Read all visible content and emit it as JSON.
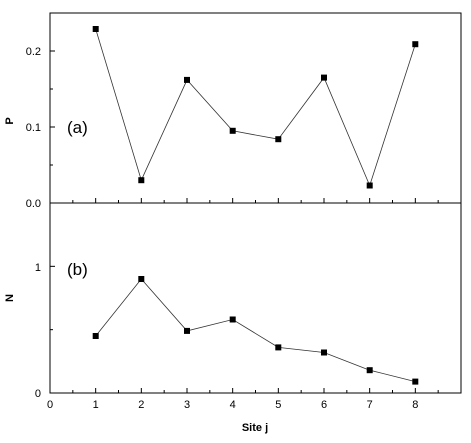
{
  "chart_data": [
    {
      "type": "line",
      "panel_label": "(a)",
      "ylabel": "P",
      "xlabel": "",
      "x": [
        1,
        2,
        3,
        4,
        5,
        6,
        7,
        8
      ],
      "y": [
        0.229,
        0.03,
        0.162,
        0.095,
        0.084,
        0.165,
        0.023,
        0.209
      ],
      "xlim": [
        0,
        9
      ],
      "ylim": [
        0.0,
        0.25
      ],
      "xticks": [
        0,
        1,
        2,
        3,
        4,
        5,
        6,
        7,
        8
      ],
      "yticks": [
        "0.0",
        "0.1",
        "0.2"
      ],
      "marker": "square",
      "grid": false
    },
    {
      "type": "line",
      "panel_label": "(b)",
      "ylabel": "N",
      "xlabel": "Site j",
      "x": [
        1,
        2,
        3,
        4,
        5,
        6,
        7,
        8
      ],
      "y": [
        0.45,
        0.9,
        0.49,
        0.58,
        0.36,
        0.32,
        0.18,
        0.09
      ],
      "xlim": [
        0,
        9
      ],
      "ylim": [
        0,
        1.5
      ],
      "xticks": [
        "0",
        "1",
        "2",
        "3",
        "4",
        "5",
        "6",
        "7",
        "8"
      ],
      "yticks": [
        "0",
        "1"
      ],
      "marker": "square",
      "grid": false
    }
  ]
}
